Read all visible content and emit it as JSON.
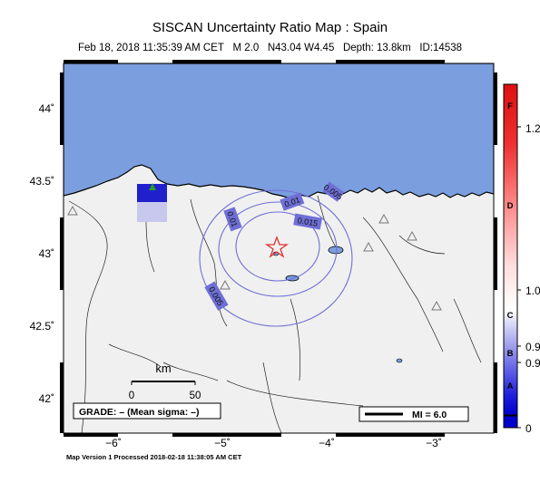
{
  "title": "SISCAN Uncertainty Ratio Map : Spain",
  "subtitle": {
    "datetime": "Feb 18, 2018 11:35:39 AM CET",
    "magnitude": "M 2.0",
    "location": "N43.04 W4.45",
    "depth": "Depth: 13.8km",
    "id": "ID:14538"
  },
  "axes": {
    "x_ticks": [
      "−6˚",
      "−5˚",
      "−4˚",
      "−3˚"
    ],
    "y_ticks": [
      "44˚",
      "43.5˚",
      "43˚",
      "42.5˚",
      "42˚"
    ]
  },
  "map": {
    "ocean_color": "#7b9ede",
    "land_color": "#f0f0f0",
    "contour_color": "#6f6fd6",
    "epicenter_color": "#e03030",
    "contour_labels": [
      "0.01",
      "0.005",
      "0.015",
      "0.01",
      "0.005"
    ],
    "scale_bar": {
      "unit": "km",
      "ticks": [
        "0",
        "50"
      ]
    },
    "grade_box": "GRADE: – (Mean sigma: –)",
    "mi_legend": "MI = 6.0"
  },
  "colorbar": {
    "letters": [
      "F",
      "D",
      "C",
      "B",
      "A"
    ],
    "values": [
      "1.2",
      "1.0",
      "0.9",
      "0.9",
      "0"
    ]
  },
  "footer": "Map Version 1 Processed 2018-02-18 11:38:05 AM CET"
}
